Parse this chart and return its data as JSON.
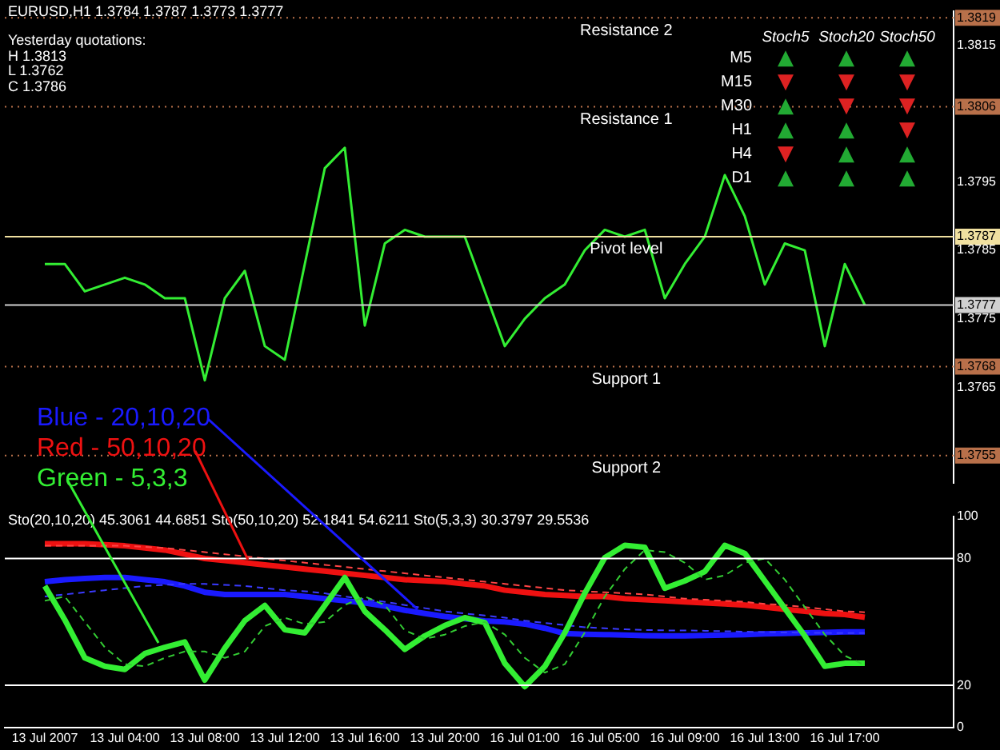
{
  "chart_data": [
    {
      "type": "line",
      "title": "EURUSD,H1 1.3784 1.3787 1.3773 1.3777",
      "annotations": [
        "Yesterday quotations:",
        "H 1.3813",
        "L 1.3762",
        "C 1.3786"
      ],
      "categories": [
        null,
        null,
        null,
        null,
        null,
        null,
        null,
        null,
        null,
        null,
        null,
        null,
        null,
        null,
        null,
        null,
        null,
        null,
        null,
        null,
        null,
        null,
        null,
        null,
        null,
        null,
        null,
        null,
        null,
        null,
        null,
        null,
        null,
        null,
        null,
        null,
        null,
        null,
        null,
        null,
        null,
        null
      ],
      "series": [
        {
          "color": "#33ee33",
          "values": [
            1.3783,
            1.3783,
            1.3779,
            1.378,
            1.3781,
            1.378,
            1.3778,
            1.3778,
            1.3766,
            1.3778,
            1.3782,
            1.3771,
            1.3769,
            1.3783,
            1.3797,
            1.38,
            1.3774,
            1.3786,
            1.3788,
            1.3787,
            1.3787,
            1.3787,
            1.3779,
            1.3771,
            1.3775,
            1.3778,
            1.378,
            1.3785,
            1.3788,
            1.3787,
            1.3788,
            1.3778,
            1.3783,
            1.3787,
            1.3796,
            1.379,
            1.378,
            1.3786,
            1.3785,
            1.3771,
            1.3783,
            1.3777
          ]
        }
      ],
      "ylim": [
        1.3751,
        1.382
      ],
      "yticks": [
        1.3819,
        1.3815,
        1.3806,
        1.3795,
        1.3787,
        1.3785,
        1.3777,
        1.3775,
        1.3768,
        1.3765,
        1.3755
      ],
      "ref_lines": [
        {
          "axis": "y",
          "value": 1.3819,
          "label": "Resistance 2",
          "color": "#b8704a",
          "line_style": "dotted"
        },
        {
          "axis": "y",
          "value": 1.3806,
          "label": "Resistance 1",
          "color": "#b8704a",
          "line_style": "dotted"
        },
        {
          "axis": "y",
          "value": 1.3787,
          "label": "Pivot level",
          "color": "#f0e0a0",
          "line_style": "solid"
        },
        {
          "axis": "y",
          "value": 1.3777,
          "label": null,
          "color": "#d0d0d0",
          "line_style": "solid"
        },
        {
          "axis": "y",
          "value": 1.3768,
          "label": "Support 1",
          "color": "#b8704a",
          "line_style": "dotted"
        },
        {
          "axis": "y",
          "value": 1.3755,
          "label": "Support 2",
          "color": "#b8704a",
          "line_style": "dotted"
        }
      ],
      "tick_labels": "y",
      "marker": "none",
      "line_style": "solid"
    },
    {
      "type": "line",
      "annotations": [
        "Sto(20,10,20) 45.3061 44.6851 Sto(50,10,20) 52.1841 54.6211 Sto(5,3,3) 30.3797 29.5536"
      ],
      "categories": [
        "13 Jul 2007",
        null,
        null,
        null,
        "13 Jul 04:00",
        null,
        null,
        null,
        "13 Jul 08:00",
        null,
        null,
        null,
        "13 Jul 12:00",
        null,
        null,
        null,
        "13 Jul 16:00",
        null,
        null,
        null,
        "13 Jul 20:00",
        null,
        null,
        null,
        "16 Jul 01:00",
        null,
        null,
        null,
        "16 Jul 05:00",
        null,
        null,
        null,
        "16 Jul 09:00",
        null,
        null,
        null,
        "16 Jul 13:00",
        null,
        null,
        null,
        "16 Jul 17:00",
        null
      ],
      "series": [
        {
          "name": "Blue - 20,10,20",
          "color": "#1a1aff",
          "line_style": "solid",
          "values": [
            69,
            70,
            70.5,
            71,
            71,
            70,
            69,
            67,
            64,
            63,
            63,
            63,
            63,
            62,
            61,
            60,
            59,
            57.5,
            55.5,
            54,
            52.6,
            51.5,
            50.5,
            50,
            49,
            47,
            44.5,
            44.2,
            44,
            43.8,
            43.5,
            43.4,
            43.4,
            43.6,
            43.8,
            44,
            44.3,
            44.5,
            44.8,
            45,
            45.3,
            45.3
          ]
        },
        {
          "color": "#3a3aff",
          "line_style": "dashed",
          "values": [
            62,
            63,
            64,
            65,
            66,
            67,
            67.5,
            68,
            68,
            67.5,
            67,
            66,
            65,
            64.5,
            63.5,
            62,
            60.7,
            59.5,
            58,
            56.5,
            55,
            54,
            53,
            52,
            50.6,
            49.5,
            48.5,
            47.5,
            47,
            46.5,
            46.2,
            46,
            46,
            45.8,
            45.6,
            45.4,
            45.2,
            45,
            44.9,
            44.8,
            44.7,
            44.7
          ]
        },
        {
          "name": "Red - 50,10,20",
          "color": "#ee1111",
          "line_style": "solid",
          "values": [
            87,
            87,
            87,
            86.5,
            86,
            85,
            84,
            82,
            80,
            79,
            78,
            77,
            76,
            75,
            74,
            73,
            72,
            71,
            70,
            69.5,
            69,
            68,
            67,
            65,
            64,
            63,
            62.5,
            62,
            62,
            61,
            60.5,
            60,
            59.5,
            59,
            58.5,
            58,
            57,
            56,
            55,
            54,
            53.5,
            52.2
          ]
        },
        {
          "color": "#ff4444",
          "line_style": "dashed",
          "values": [
            86,
            86,
            86,
            86,
            86,
            85.5,
            85,
            84,
            83,
            82,
            81,
            80,
            79,
            78,
            77,
            76,
            75,
            74,
            73,
            72,
            71,
            70,
            69,
            68,
            67,
            66,
            65,
            64.5,
            64,
            63.5,
            63,
            62,
            61,
            60.5,
            60,
            59.5,
            58.5,
            58,
            57,
            56,
            55,
            54.6
          ]
        },
        {
          "name": "Green - 5,3,3",
          "color": "#33ee33",
          "line_style": "solid",
          "values": [
            67,
            51,
            33,
            29,
            27.5,
            35,
            38,
            40.5,
            22.5,
            37.6,
            50.6,
            57.8,
            46.3,
            44.8,
            57.8,
            71,
            55,
            46.3,
            37,
            43.4,
            48.3,
            52,
            49.7,
            30.4,
            19.4,
            28.9,
            44.8,
            63.6,
            80.4,
            86.2,
            85.3,
            65.9,
            69.4,
            73.8,
            86.2,
            82.4,
            69.4,
            56.4,
            43.4,
            29,
            30.4,
            30.4
          ]
        },
        {
          "color": "#33cc33",
          "line_style": "dashed",
          "values": [
            60,
            62,
            50,
            38,
            30,
            29,
            33,
            36,
            36,
            33,
            36,
            48,
            52,
            49,
            50,
            58,
            62,
            58,
            46,
            42,
            44,
            48,
            50,
            44,
            33,
            26,
            30,
            45,
            62,
            75,
            84,
            83,
            78,
            70,
            72,
            78,
            80,
            70,
            57,
            44,
            34,
            29.6
          ]
        }
      ],
      "ylim": [
        0,
        100
      ],
      "yticks": [
        0,
        20,
        80,
        100
      ],
      "ref_lines": [
        {
          "axis": "y",
          "value": 80,
          "color": "#ffffff",
          "line_style": "solid"
        },
        {
          "axis": "y",
          "value": 20,
          "color": "#ffffff",
          "line_style": "solid"
        }
      ],
      "legend": "left",
      "marker": "none"
    },
    {
      "type": "other",
      "categories": [
        "Stoch5",
        "Stoch20",
        "Stoch50"
      ],
      "y_categories": [
        "M5",
        "M15",
        "M30",
        "H1",
        "H4",
        "D1"
      ],
      "colors": [
        [
          "#22aa33",
          "#22aa33",
          "#22aa33"
        ],
        [
          "#dd2222",
          "#dd2222",
          "#dd2222"
        ],
        [
          "#22aa33",
          "#dd2222",
          "#dd2222"
        ],
        [
          "#22aa33",
          "#22aa33",
          "#dd2222"
        ],
        [
          "#dd2222",
          "#22aa33",
          "#22aa33"
        ],
        [
          "#22aa33",
          "#22aa33",
          "#22aa33"
        ]
      ],
      "cell_labels": [
        [
          "▲",
          "▲",
          "▲"
        ],
        [
          "▼",
          "▼",
          "▼"
        ],
        [
          "▲",
          "▼",
          "▼"
        ],
        [
          "▲",
          "▲",
          "▼"
        ],
        [
          "▼",
          "▲",
          "▲"
        ],
        [
          "▲",
          "▲",
          "▲"
        ]
      ]
    }
  ]
}
